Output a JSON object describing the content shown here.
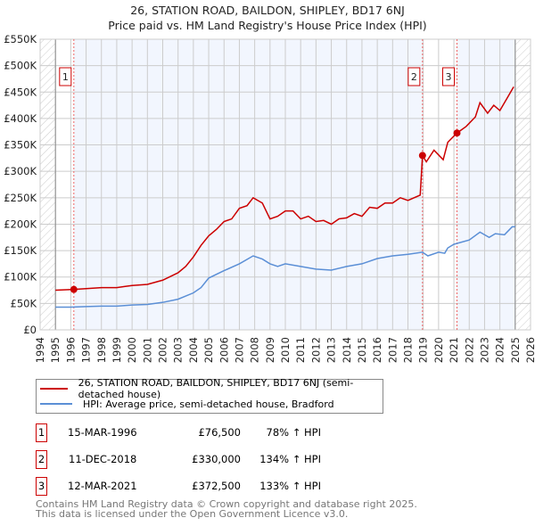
{
  "title_line1": "26, STATION ROAD, BAILDON, SHIPLEY, BD17 6NJ",
  "title_line2": "Price paid vs. HM Land Registry's House Price Index (HPI)",
  "chart_data": {
    "type": "line",
    "title": "26, STATION ROAD, BAILDON, SHIPLEY, BD17 6NJ — Price paid vs. HM Land Registry's House Price Index (HPI)",
    "xlim": [
      1994,
      2026
    ],
    "ylim": [
      0,
      550000
    ],
    "x_ticks": [
      "1994",
      "1995",
      "1996",
      "1997",
      "1998",
      "1999",
      "2000",
      "2001",
      "2002",
      "2003",
      "2004",
      "2005",
      "2006",
      "2007",
      "2008",
      "2009",
      "2010",
      "2011",
      "2012",
      "2013",
      "2014",
      "2015",
      "2016",
      "2017",
      "2018",
      "2019",
      "2020",
      "2021",
      "2022",
      "2023",
      "2024",
      "2025",
      "2026"
    ],
    "y_ticks": [
      {
        "v": 0,
        "label": "£0"
      },
      {
        "v": 50000,
        "label": "£50K"
      },
      {
        "v": 100000,
        "label": "£100K"
      },
      {
        "v": 150000,
        "label": "£150K"
      },
      {
        "v": 200000,
        "label": "£200K"
      },
      {
        "v": 250000,
        "label": "£250K"
      },
      {
        "v": 300000,
        "label": "£300K"
      },
      {
        "v": 350000,
        "label": "£350K"
      },
      {
        "v": 400000,
        "label": "£400K"
      },
      {
        "v": 450000,
        "label": "£450K"
      },
      {
        "v": 500000,
        "label": "£500K"
      },
      {
        "v": 550000,
        "label": "£550K"
      }
    ],
    "grid": true,
    "series": [
      {
        "name": "26, STATION ROAD, BAILDON, SHIPLEY, BD17 6NJ (semi-detached house)",
        "color": "#cc0000",
        "x": [
          1995,
          1996.2,
          1997,
          1998,
          1999,
          1999.5,
          2000,
          2001,
          2001.5,
          2002,
          2003,
          2003.5,
          2004,
          2004.5,
          2005,
          2005.5,
          2006,
          2006.5,
          2007,
          2007.5,
          2007.9,
          2008.5,
          2009,
          2009.5,
          2010,
          2010.5,
          2011,
          2011.5,
          2012,
          2012.5,
          2013,
          2013.5,
          2014,
          2014.5,
          2015,
          2015.5,
          2016,
          2016.5,
          2017,
          2017.5,
          2018,
          2018.8,
          2018.95,
          2019.2,
          2019.7,
          2020.3,
          2020.6,
          2021.2,
          2021.8,
          2022.4,
          2022.7,
          2023.2,
          2023.6,
          2024,
          2024.5,
          2024.9
        ],
        "y": [
          75000,
          76500,
          78000,
          80000,
          80000,
          82000,
          84000,
          86000,
          90000,
          94000,
          108000,
          120000,
          138000,
          160000,
          178000,
          190000,
          205000,
          210000,
          230000,
          235000,
          250000,
          240000,
          210000,
          215000,
          225000,
          225000,
          210000,
          215000,
          205000,
          207000,
          200000,
          210000,
          212000,
          220000,
          215000,
          232000,
          230000,
          240000,
          240000,
          250000,
          245000,
          255000,
          330000,
          318000,
          340000,
          322000,
          355000,
          372500,
          385000,
          403000,
          430000,
          410000,
          425000,
          415000,
          440000,
          460000
        ]
      },
      {
        "name": "HPI: Average price, semi-detached house, Bradford",
        "color": "#5b8fd6",
        "x": [
          1995,
          1996,
          1997,
          1998,
          1999,
          2000,
          2001,
          2002,
          2003,
          2004,
          2004.5,
          2005,
          2006,
          2007,
          2007.9,
          2008.5,
          2009,
          2009.5,
          2010,
          2011,
          2012,
          2013,
          2014,
          2015,
          2016,
          2017,
          2018,
          2018.95,
          2019.3,
          2020,
          2020.4,
          2020.6,
          2021,
          2022,
          2022.7,
          2023.3,
          2023.7,
          2024.3,
          2024.8,
          2025
        ],
        "y": [
          43000,
          43000,
          44000,
          45000,
          45000,
          47000,
          48000,
          52000,
          58000,
          70000,
          80000,
          98000,
          112000,
          125000,
          140000,
          134000,
          125000,
          120000,
          125000,
          120000,
          115000,
          113000,
          120000,
          125000,
          135000,
          140000,
          143000,
          147000,
          140000,
          147000,
          145000,
          155000,
          162000,
          170000,
          185000,
          175000,
          182000,
          180000,
          195000,
          195000
        ]
      }
    ],
    "sales": [
      {
        "n": "1",
        "x": 1996.2,
        "y": 76500
      },
      {
        "n": "2",
        "x": 2018.95,
        "y": 330000
      },
      {
        "n": "3",
        "x": 2021.2,
        "y": 372500
      }
    ]
  },
  "legend": {
    "red": "26, STATION ROAD, BAILDON, SHIPLEY, BD17 6NJ (semi-detached house)",
    "blue": "HPI: Average price, semi-detached house, Bradford"
  },
  "sales_table": [
    {
      "n": "1",
      "date": "15-MAR-1996",
      "price": "£76,500",
      "hpi": "78% ↑ HPI"
    },
    {
      "n": "2",
      "date": "11-DEC-2018",
      "price": "£330,000",
      "hpi": "134% ↑ HPI"
    },
    {
      "n": "3",
      "date": "12-MAR-2021",
      "price": "£372,500",
      "hpi": "133% ↑ HPI"
    }
  ],
  "footer": {
    "line1": "Contains HM Land Registry data © Crown copyright and database right 2025.",
    "line2": "This data is licensed under the Open Government Licence v3.0."
  }
}
